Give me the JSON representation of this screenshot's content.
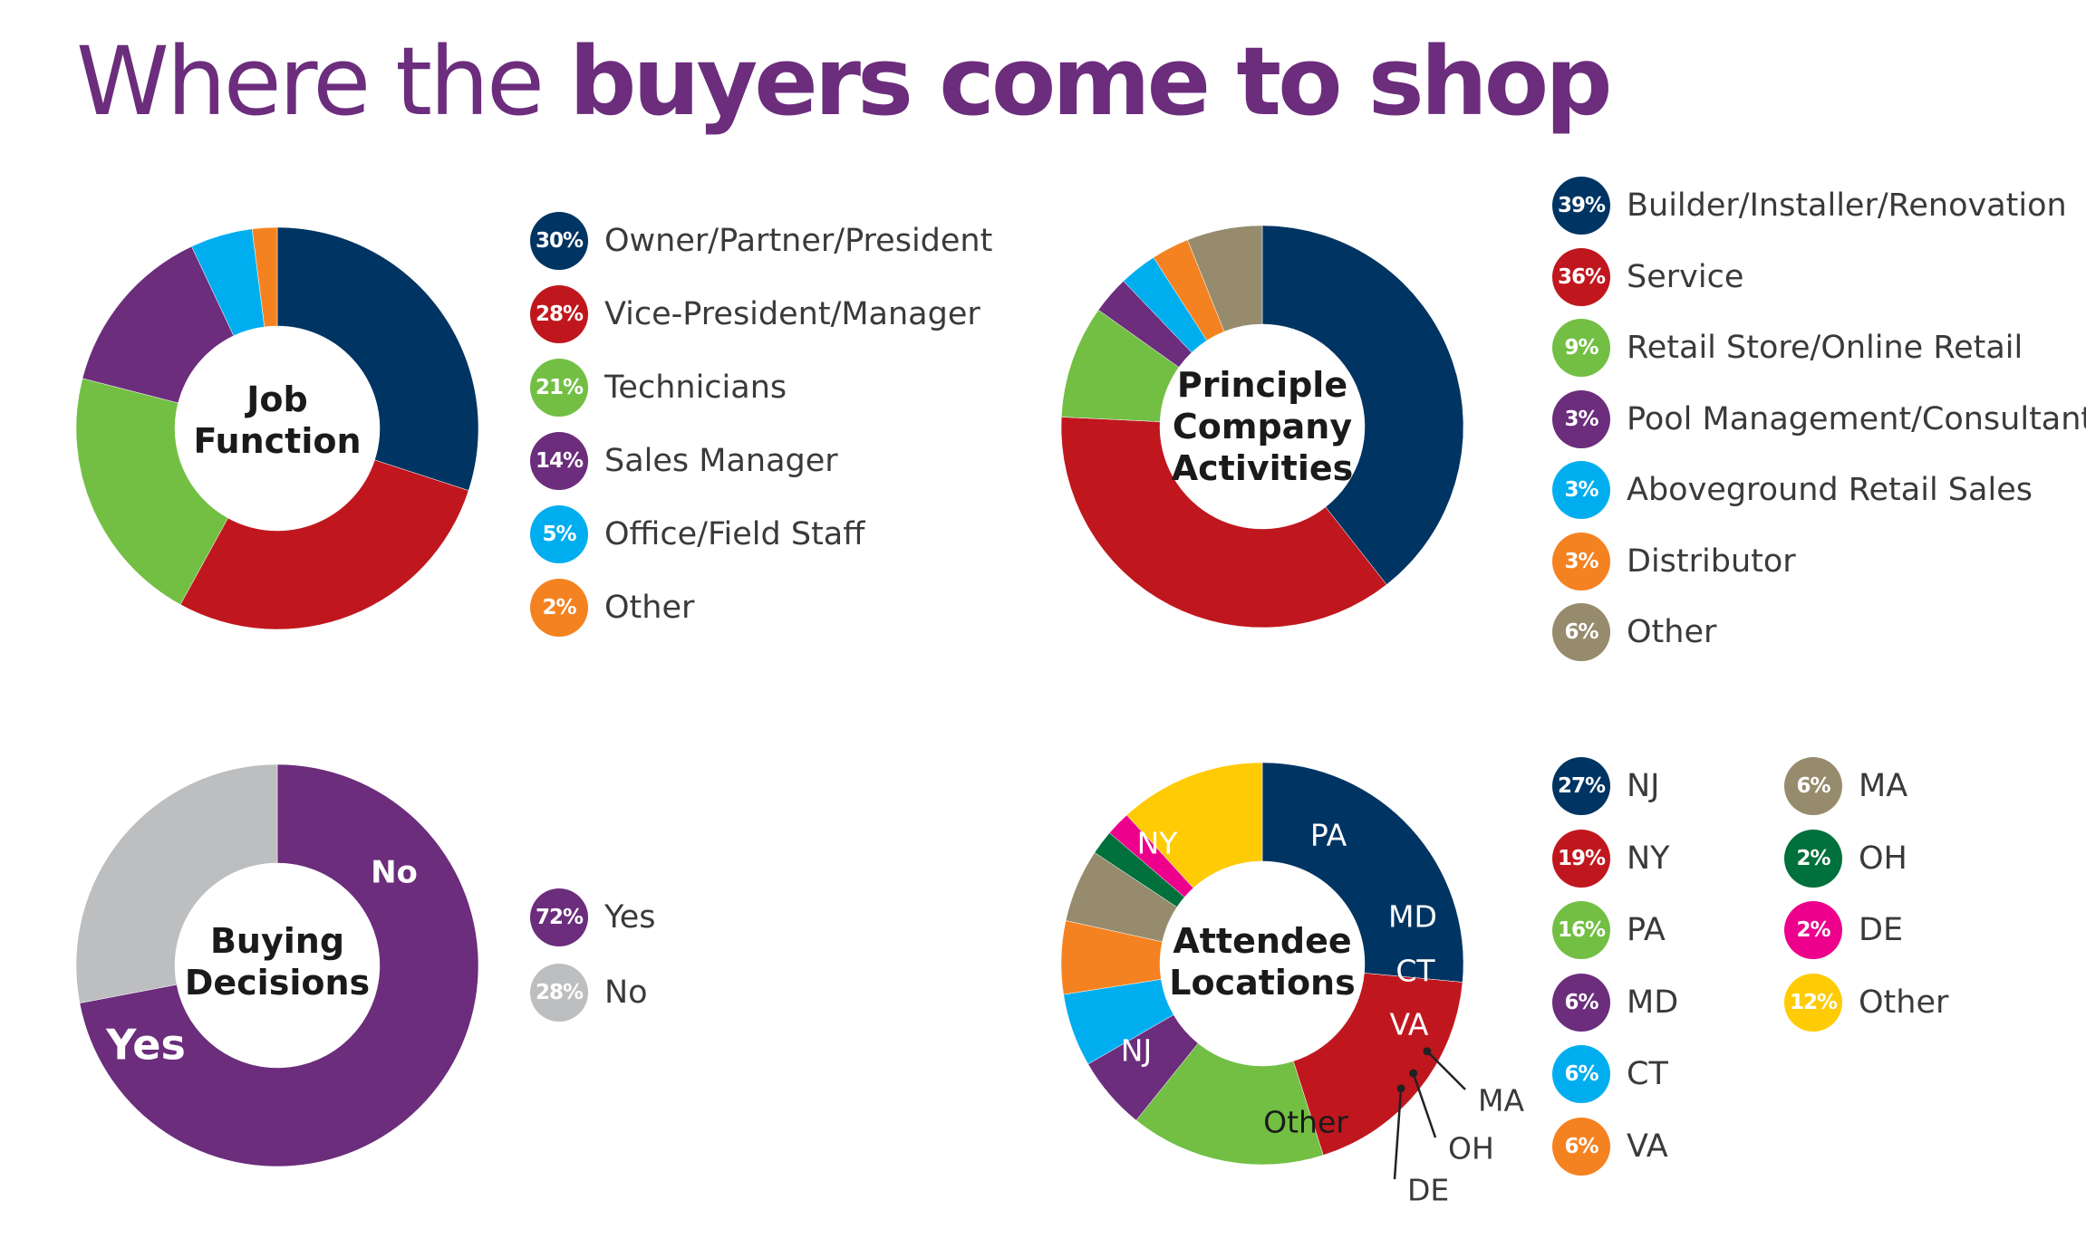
{
  "title": {
    "prefix": "Where the",
    "emphasis": "buyers come to shop"
  },
  "chart_data": [
    {
      "type": "pie",
      "id": "job",
      "title_lines": [
        "Job",
        "Function"
      ],
      "slices": [
        {
          "label": "Owner/Partner/President",
          "value": 30,
          "display": "30%",
          "color": "#003462"
        },
        {
          "label": "Vice-President/Manager",
          "value": 28,
          "display": "28%",
          "color": "#c0171e"
        },
        {
          "label": "Technicians",
          "value": 21,
          "display": "21%",
          "color": "#72bf44"
        },
        {
          "label": "Sales Manager",
          "value": 14,
          "display": "14%",
          "color": "#6b2d7c"
        },
        {
          "label": "Office/Field Staff",
          "value": 5,
          "display": "5%",
          "color": "#00aeef"
        },
        {
          "label": "Other",
          "value": 2,
          "display": "2%",
          "color": "#f58220"
        }
      ]
    },
    {
      "type": "pie",
      "id": "activities",
      "title_lines": [
        "Principle",
        "Company",
        "Activities"
      ],
      "slices": [
        {
          "label": "Builder/Installer/Renovation",
          "value": 39,
          "display": "39%",
          "color": "#003462"
        },
        {
          "label": "Service",
          "value": 36,
          "display": "36%",
          "color": "#c0171e"
        },
        {
          "label": "Retail Store/Online Retail",
          "value": 9,
          "display": "9%",
          "color": "#72bf44"
        },
        {
          "label": "Pool Management/Consultant",
          "value": 3,
          "display": "3%",
          "color": "#6b2d7c"
        },
        {
          "label": "Aboveground Retail Sales",
          "value": 3,
          "display": "3%",
          "color": "#00aeef"
        },
        {
          "label": "Distributor",
          "value": 3,
          "display": "3%",
          "color": "#f58220"
        },
        {
          "label": "Other",
          "value": 6,
          "display": "6%",
          "color": "#968b6c"
        }
      ]
    },
    {
      "type": "pie",
      "id": "buying",
      "title_lines": [
        "Buying",
        "Decisions"
      ],
      "slices": [
        {
          "label": "Yes",
          "value": 72,
          "display": "72%",
          "color": "#6b2d7c",
          "slice_label": "Yes"
        },
        {
          "label": "No",
          "value": 28,
          "display": "28%",
          "color": "#bcbec0",
          "slice_label": "No"
        }
      ]
    },
    {
      "type": "pie",
      "id": "locations",
      "title_lines": [
        "Attendee",
        "Locations"
      ],
      "slices": [
        {
          "label": "NJ",
          "value": 27,
          "display": "27%",
          "color": "#003462",
          "slice_label": "NJ"
        },
        {
          "label": "NY",
          "value": 19,
          "display": "19%",
          "color": "#c0171e",
          "slice_label": "NY"
        },
        {
          "label": "PA",
          "value": 16,
          "display": "16%",
          "color": "#72bf44",
          "slice_label": "PA"
        },
        {
          "label": "MD",
          "value": 6,
          "display": "6%",
          "color": "#6b2d7c",
          "slice_label": "MD"
        },
        {
          "label": "CT",
          "value": 6,
          "display": "6%",
          "color": "#00aeef",
          "slice_label": "CT"
        },
        {
          "label": "VA",
          "value": 6,
          "display": "6%",
          "color": "#f58220",
          "slice_label": "VA"
        },
        {
          "label": "MA",
          "value": 6,
          "display": "6%",
          "color": "#968b6c",
          "slice_label": "MA"
        },
        {
          "label": "OH",
          "value": 2,
          "display": "2%",
          "color": "#00703c",
          "slice_label": "OH"
        },
        {
          "label": "DE",
          "value": 2,
          "display": "2%",
          "color": "#ec008c",
          "slice_label": "DE"
        },
        {
          "label": "Other",
          "value": 12,
          "display": "12%",
          "color": "#ffcb05",
          "slice_label": "Other"
        }
      ]
    }
  ]
}
